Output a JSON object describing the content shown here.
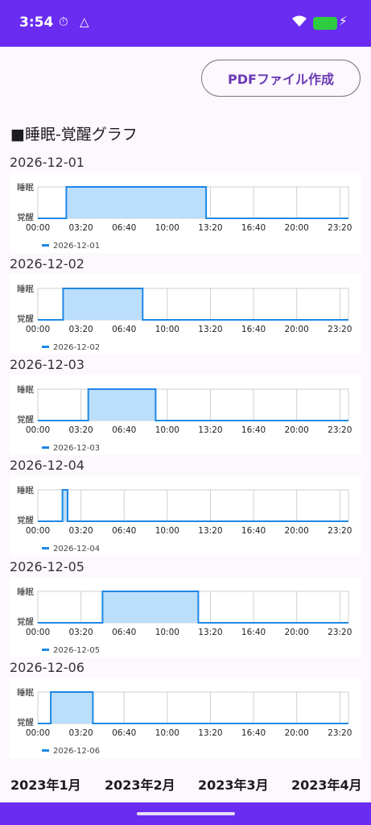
{
  "status_bar": {
    "time": "3:54"
  },
  "pdf_button_label": "PDFファイル作成",
  "section_title": "■睡眠-覚醒グラフ",
  "axis": {
    "y_sleep": "睡眠",
    "y_wake": "覚醒",
    "x_ticks": [
      "00:00",
      "03:20",
      "06:40",
      "10:00",
      "13:20",
      "16:40",
      "20:00",
      "23:20"
    ]
  },
  "colors": {
    "line": "#1e88e5",
    "fill": "#bbdefb",
    "accent": "#6a2cf0"
  },
  "chart_data": [
    {
      "type": "area",
      "title": "2026-12-01",
      "legend": "2026-12-01",
      "x_unit": "hours",
      "xlim": [
        0,
        24
      ],
      "y_states": [
        "覚醒",
        "睡眠"
      ],
      "x": [
        0,
        2.2,
        2.2,
        13.0,
        13.0,
        24
      ],
      "y": [
        0,
        0,
        1,
        1,
        0,
        0
      ]
    },
    {
      "type": "area",
      "title": "2026-12-02",
      "legend": "2026-12-02",
      "x_unit": "hours",
      "xlim": [
        0,
        24
      ],
      "y_states": [
        "覚醒",
        "睡眠"
      ],
      "x": [
        0,
        1.95,
        1.95,
        8.1,
        8.1,
        24
      ],
      "y": [
        0,
        0,
        1,
        1,
        0,
        0
      ]
    },
    {
      "type": "area",
      "title": "2026-12-03",
      "legend": "2026-12-03",
      "x_unit": "hours",
      "xlim": [
        0,
        24
      ],
      "y_states": [
        "覚醒",
        "睡眠"
      ],
      "x": [
        0,
        3.9,
        3.9,
        9.1,
        9.1,
        24
      ],
      "y": [
        0,
        0,
        1,
        1,
        0,
        0
      ]
    },
    {
      "type": "area",
      "title": "2026-12-04",
      "legend": "2026-12-04",
      "x_unit": "hours",
      "xlim": [
        0,
        24
      ],
      "y_states": [
        "覚醒",
        "睡眠"
      ],
      "x": [
        0,
        1.9,
        1.9,
        2.3,
        2.3,
        24
      ],
      "y": [
        0,
        0,
        1,
        1,
        0,
        0
      ]
    },
    {
      "type": "area",
      "title": "2026-12-05",
      "legend": "2026-12-05",
      "x_unit": "hours",
      "xlim": [
        0,
        24
      ],
      "y_states": [
        "覚醒",
        "睡眠"
      ],
      "x": [
        0,
        5.0,
        5.0,
        12.4,
        12.4,
        24
      ],
      "y": [
        0,
        0,
        1,
        1,
        0,
        0
      ]
    },
    {
      "type": "area",
      "title": "2026-12-06",
      "legend": "2026-12-06",
      "x_unit": "hours",
      "xlim": [
        0,
        24
      ],
      "y_states": [
        "覚醒",
        "睡眠"
      ],
      "x": [
        0,
        1.0,
        1.0,
        4.25,
        4.25,
        24
      ],
      "y": [
        0,
        0,
        1,
        1,
        0,
        0
      ]
    }
  ],
  "months": [
    "2023年1月",
    "2023年2月",
    "2023年3月",
    "2023年4月"
  ]
}
